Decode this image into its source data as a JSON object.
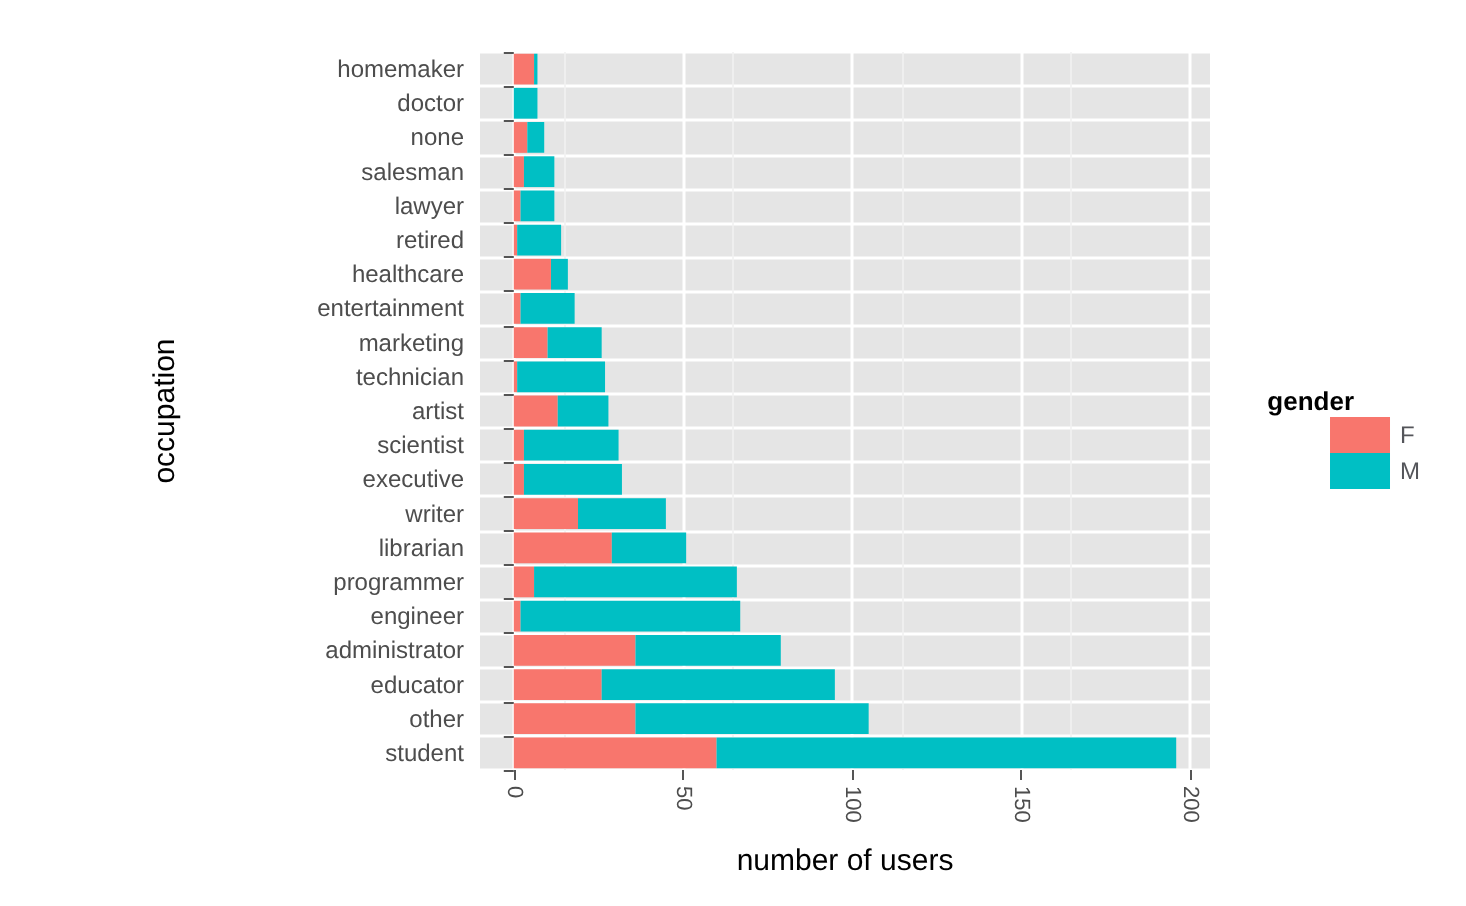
{
  "chart_data": {
    "type": "bar",
    "orientation": "horizontal",
    "stacked": true,
    "xlabel": "number of users",
    "ylabel": "occupation",
    "legend_title": "gender",
    "categories": [
      "homemaker",
      "doctor",
      "none",
      "salesman",
      "lawyer",
      "retired",
      "healthcare",
      "entertainment",
      "marketing",
      "technician",
      "artist",
      "scientist",
      "executive",
      "writer",
      "librarian",
      "programmer",
      "engineer",
      "administrator",
      "educator",
      "other",
      "student"
    ],
    "series": [
      {
        "name": "F",
        "color": "#f8766d",
        "values": [
          6,
          0,
          4,
          3,
          2,
          1,
          11,
          2,
          10,
          1,
          13,
          3,
          3,
          19,
          29,
          6,
          2,
          36,
          26,
          36,
          60
        ]
      },
      {
        "name": "M",
        "color": "#00bfc4",
        "values": [
          1,
          7,
          5,
          9,
          10,
          13,
          5,
          16,
          16,
          26,
          15,
          28,
          29,
          26,
          22,
          60,
          65,
          43,
          69,
          69,
          136
        ]
      }
    ],
    "xlim": [
      -10,
      206
    ],
    "xticks": [
      0,
      50,
      100,
      150,
      200
    ],
    "grid": true,
    "legend": "right"
  }
}
